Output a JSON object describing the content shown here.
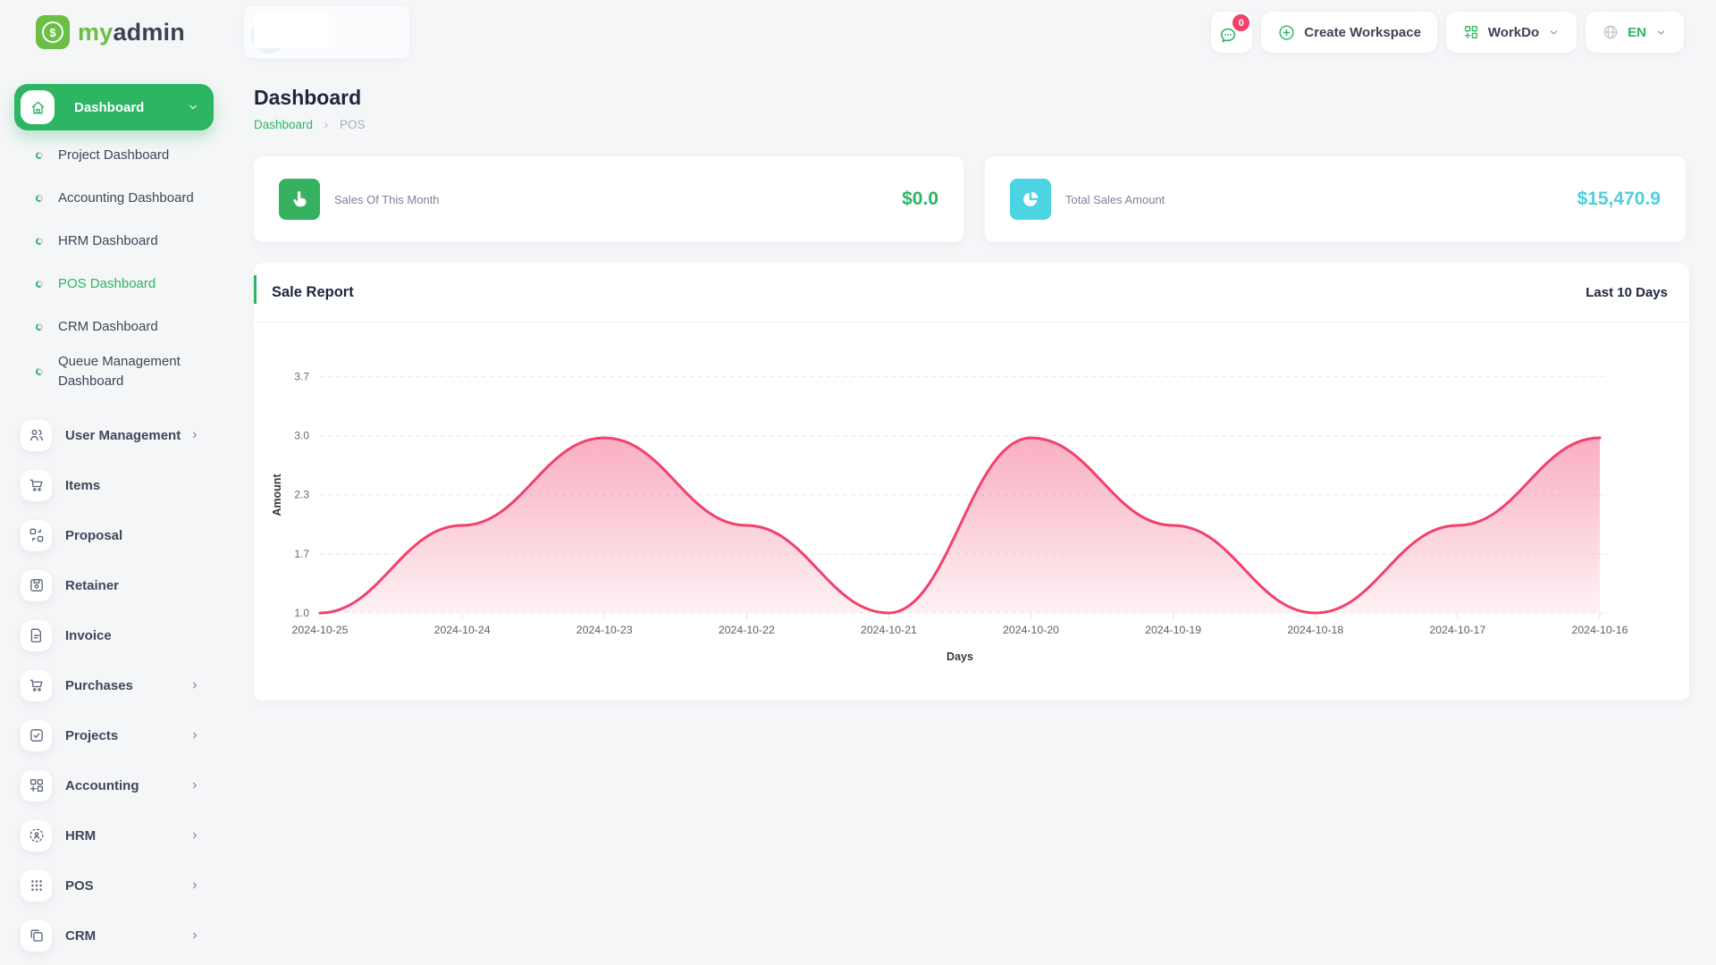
{
  "brand": {
    "primary": "my",
    "secondary": "admin",
    "logo_symbol": "$"
  },
  "header": {
    "messages_badge": "0",
    "messages_icon": "chat-bubble-icon",
    "create_workspace_label": "Create Workspace",
    "workdo_label": "WorkDo",
    "language_label": "EN",
    "language_icon": "globe-icon"
  },
  "sidebar": {
    "dashboard_label": "Dashboard",
    "dashboard_submenu": [
      {
        "label": "Project Dashboard",
        "active": false
      },
      {
        "label": "Accounting Dashboard",
        "active": false
      },
      {
        "label": "HRM Dashboard",
        "active": false
      },
      {
        "label": "POS Dashboard",
        "active": true
      },
      {
        "label": "CRM Dashboard",
        "active": false
      },
      {
        "label": "Queue Management Dashboard",
        "active": false
      }
    ],
    "items": [
      {
        "label": "User Management",
        "icon": "users-icon",
        "expandable": true
      },
      {
        "label": "Items",
        "icon": "cart-icon",
        "expandable": false
      },
      {
        "label": "Proposal",
        "icon": "swap-grid-icon",
        "expandable": false
      },
      {
        "label": "Retainer",
        "icon": "floppy-disk-icon",
        "expandable": false
      },
      {
        "label": "Invoice",
        "icon": "document-icon",
        "expandable": false
      },
      {
        "label": "Purchases",
        "icon": "cart-icon",
        "expandable": true
      },
      {
        "label": "Projects",
        "icon": "checkbox-icon",
        "expandable": true
      },
      {
        "label": "Accounting",
        "icon": "grid-plus-icon",
        "expandable": true
      },
      {
        "label": "HRM",
        "icon": "person-target-icon",
        "expandable": true
      },
      {
        "label": "POS",
        "icon": "dots-grid-icon",
        "expandable": true
      },
      {
        "label": "CRM",
        "icon": "overlap-squares-icon",
        "expandable": true
      }
    ]
  },
  "page": {
    "title": "Dashboard",
    "breadcrumb": {
      "root": "Dashboard",
      "current": "POS"
    }
  },
  "stats": [
    {
      "label": "Sales Of This Month",
      "value": "$0.0",
      "icon": "hand-pointer-icon",
      "accent": "#35b15f"
    },
    {
      "label": "Total Sales Amount",
      "value": "$15,470.9",
      "icon": "pie-chart-icon",
      "accent": "#4cd4e3"
    }
  ],
  "chart_card": {
    "title": "Sale Report",
    "period": "Last 10 Days"
  },
  "chart_data": {
    "type": "area",
    "x": [
      "2024-10-25",
      "2024-10-24",
      "2024-10-23",
      "2024-10-22",
      "2024-10-21",
      "2024-10-20",
      "2024-10-19",
      "2024-10-18",
      "2024-10-17",
      "2024-10-16"
    ],
    "series": [
      {
        "name": "Amount",
        "values": [
          1.0,
          2.0,
          3.0,
          2.0,
          1.0,
          3.0,
          2.0,
          1.0,
          2.0,
          3.0
        ]
      }
    ],
    "title": "Sale Report",
    "xlabel": "Days",
    "ylabel": "Amount",
    "ylim": [
      1.0,
      3.7
    ],
    "ytick_labels": [
      "3.7",
      "3.0",
      "2.3",
      "1.7",
      "1.0"
    ],
    "grid": "dashed-horizontal",
    "legend": "none",
    "line_color": "#f1416c",
    "fill": "vertical-gradient"
  },
  "colors": {
    "primary_green": "#2db563",
    "logo_green": "#6abf45",
    "accent_pink": "#f1416c",
    "accent_cyan": "#4cd4e3",
    "text_dark": "#20263f",
    "page_bg": "#f5f6f8"
  }
}
